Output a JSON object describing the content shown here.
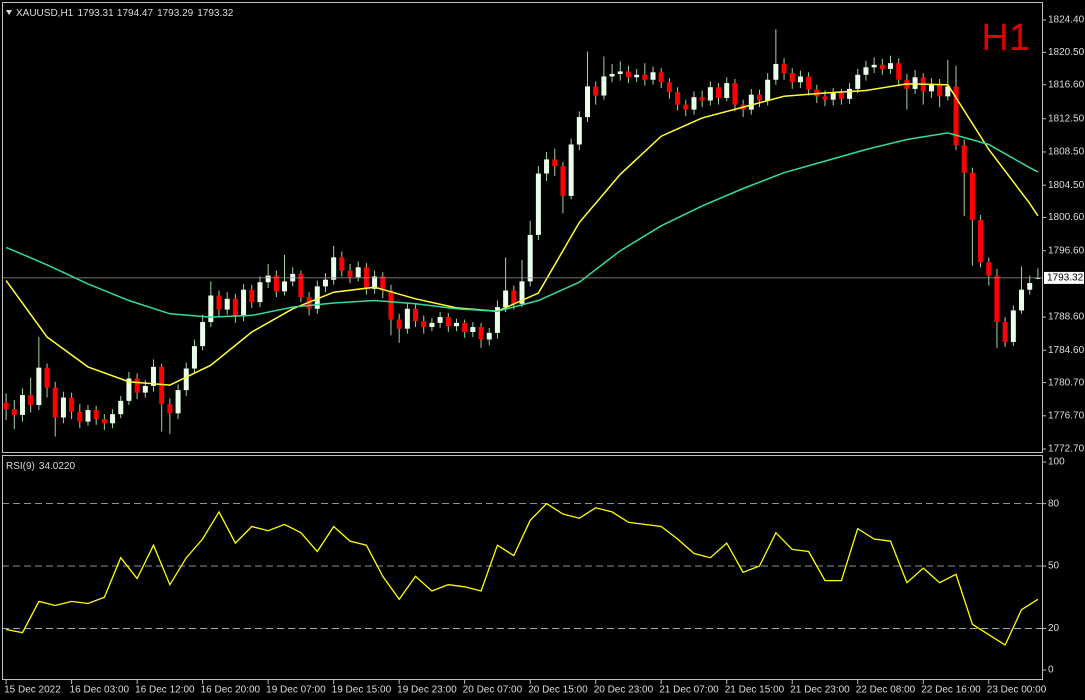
{
  "chart_data": {
    "type": "candlestick",
    "symbol": "XAUUSD,H1",
    "timeframe_label": "H1",
    "categories": [
      "15 Dec 2022",
      null,
      null,
      null,
      null,
      null,
      null,
      null,
      "16 Dec 03:00",
      null,
      null,
      null,
      null,
      null,
      null,
      null,
      "16 Dec 12:00",
      null,
      null,
      null,
      null,
      null,
      null,
      null,
      "16 Dec 20:00",
      null,
      null,
      null,
      null,
      null,
      null,
      null,
      "19 Dec 07:00",
      null,
      null,
      null,
      null,
      null,
      null,
      null,
      "19 Dec 15:00",
      null,
      null,
      null,
      null,
      null,
      null,
      null,
      "19 Dec 23:00",
      null,
      null,
      null,
      null,
      null,
      null,
      null,
      "20 Dec 07:00",
      null,
      null,
      null,
      null,
      null,
      null,
      null,
      "20 Dec 15:00",
      null,
      null,
      null,
      null,
      null,
      null,
      null,
      "20 Dec 23:00",
      null,
      null,
      null,
      null,
      null,
      null,
      null,
      "21 Dec 07:00",
      null,
      null,
      null,
      null,
      null,
      null,
      null,
      "21 Dec 15:00",
      null,
      null,
      null,
      null,
      null,
      null,
      null,
      "21 Dec 23:00",
      null,
      null,
      null,
      null,
      null,
      null,
      null,
      "22 Dec 08:00",
      null,
      null,
      null,
      null,
      null,
      null,
      null,
      "22 Dec 16:00",
      null,
      null,
      null,
      null,
      null,
      null,
      null,
      "23 Dec 00:00",
      null,
      null,
      null,
      null,
      null,
      null
    ],
    "open": [
      1778.3,
      1777.5,
      1776.8,
      1779.2,
      1778.0,
      1782.5,
      1780.1,
      1776.5,
      1778.9,
      1777.2,
      1776.0,
      1777.4,
      1776.3,
      1775.8,
      1776.9,
      1778.5,
      1781.2,
      1779.5,
      1780.3,
      1782.6,
      1778.1,
      1777.0,
      1779.8,
      1782.4,
      1785.1,
      1788.0,
      1791.2,
      1789.5,
      1790.8,
      1788.7,
      1791.9,
      1790.4,
      1792.8,
      1793.6,
      1791.7,
      1792.9,
      1793.8,
      1791.0,
      1789.6,
      1792.3,
      1793.1,
      1795.8,
      1794.2,
      1793.4,
      1794.6,
      1792.0,
      1793.5,
      1791.8,
      1788.3,
      1787.2,
      1789.6,
      1788.1,
      1787.4,
      1787.9,
      1788.6,
      1787.5,
      1787.9,
      1786.8,
      1787.4,
      1785.9,
      1786.7,
      1789.8,
      1791.8,
      1790.2,
      1792.9,
      1798.5,
      1805.9,
      1807.6,
      1806.8,
      1803.2,
      1809.4,
      1812.7,
      1816.4,
      1815.3,
      1817.6,
      1817.9,
      1818.2,
      1817.5,
      1817.8,
      1817.2,
      1818.1,
      1816.9,
      1815.7,
      1814.2,
      1813.6,
      1815.1,
      1814.7,
      1816.3,
      1815.0,
      1816.8,
      1814.2,
      1813.6,
      1815.4,
      1814.7,
      1817.2,
      1819.1,
      1818.0,
      1816.9,
      1817.6,
      1816.0,
      1815.2,
      1814.8,
      1815.6,
      1814.9,
      1816.1,
      1817.8,
      1818.7,
      1819.0,
      1818.5,
      1819.2,
      1817.2,
      1816.1,
      1817.5,
      1815.8,
      1816.7,
      1815.2,
      1816.4,
      1809.3,
      1806.0,
      1800.3,
      1795.2,
      1793.6,
      1788.0,
      1785.6,
      1789.4,
      1791.9,
      1793.31
    ],
    "high": [
      1779.4,
      1778.6,
      1780.0,
      1781.3,
      1786.2,
      1783.0,
      1780.8,
      1779.6,
      1779.5,
      1778.1,
      1778.0,
      1777.9,
      1776.9,
      1777.5,
      1779.1,
      1782.0,
      1781.8,
      1781.0,
      1783.5,
      1783.0,
      1778.8,
      1780.5,
      1783.1,
      1785.9,
      1788.9,
      1792.9,
      1791.8,
      1791.6,
      1791.4,
      1792.6,
      1792.5,
      1793.5,
      1795.0,
      1794.2,
      1796.1,
      1794.6,
      1794.2,
      1791.6,
      1793.0,
      1793.9,
      1797.2,
      1796.5,
      1795.0,
      1795.3,
      1795.1,
      1794.2,
      1794.0,
      1792.5,
      1789.0,
      1790.3,
      1790.2,
      1788.8,
      1788.5,
      1789.2,
      1789.1,
      1788.4,
      1788.3,
      1788.0,
      1787.9,
      1787.3,
      1790.6,
      1795.8,
      1792.4,
      1795.5,
      1800.2,
      1806.8,
      1808.5,
      1808.9,
      1807.3,
      1810.1,
      1813.4,
      1820.6,
      1817.0,
      1820.0,
      1819.1,
      1819.4,
      1818.9,
      1818.5,
      1819.2,
      1818.8,
      1818.6,
      1817.4,
      1816.3,
      1814.8,
      1815.8,
      1815.9,
      1817.0,
      1816.8,
      1817.5,
      1817.3,
      1814.8,
      1816.1,
      1816.0,
      1818.0,
      1823.3,
      1819.8,
      1818.6,
      1818.3,
      1818.1,
      1816.6,
      1815.9,
      1816.2,
      1816.1,
      1816.8,
      1818.5,
      1819.5,
      1819.9,
      1819.7,
      1820.1,
      1819.8,
      1817.9,
      1818.4,
      1818.0,
      1817.4,
      1817.3,
      1819.6,
      1818.9,
      1810.0,
      1806.6,
      1800.9,
      1795.8,
      1794.4,
      1788.6,
      1790.0,
      1794.7,
      1793.6,
      1794.47
    ],
    "low": [
      1776.2,
      1775.1,
      1776.0,
      1777.1,
      1777.4,
      1778.9,
      1774.2,
      1775.8,
      1776.3,
      1775.2,
      1775.5,
      1775.6,
      1775.0,
      1775.2,
      1776.4,
      1778.0,
      1778.7,
      1778.9,
      1779.6,
      1774.8,
      1774.5,
      1776.3,
      1779.1,
      1781.8,
      1784.6,
      1787.4,
      1788.6,
      1788.9,
      1787.9,
      1788.1,
      1789.7,
      1789.8,
      1792.1,
      1791.0,
      1791.2,
      1792.3,
      1790.4,
      1788.8,
      1789.0,
      1791.6,
      1792.5,
      1793.5,
      1792.7,
      1792.9,
      1791.3,
      1791.4,
      1790.9,
      1786.4,
      1785.5,
      1786.6,
      1787.4,
      1786.6,
      1786.9,
      1787.3,
      1786.8,
      1786.9,
      1786.1,
      1786.2,
      1784.9,
      1785.2,
      1786.0,
      1789.2,
      1789.5,
      1789.8,
      1792.3,
      1797.9,
      1805.0,
      1805.6,
      1801.1,
      1802.8,
      1808.7,
      1812.1,
      1814.2,
      1814.8,
      1816.9,
      1817.1,
      1816.8,
      1816.9,
      1816.5,
      1816.6,
      1816.2,
      1814.9,
      1813.5,
      1812.8,
      1813.0,
      1813.9,
      1814.1,
      1814.2,
      1814.6,
      1813.4,
      1812.7,
      1813.0,
      1813.9,
      1814.1,
      1816.6,
      1817.2,
      1816.1,
      1816.2,
      1815.3,
      1814.4,
      1814.0,
      1814.1,
      1814.2,
      1814.3,
      1815.6,
      1817.1,
      1818.0,
      1817.8,
      1817.9,
      1816.4,
      1813.6,
      1815.5,
      1814.2,
      1815.0,
      1813.9,
      1814.7,
      1808.7,
      1800.8,
      1794.8,
      1794.6,
      1792.4,
      1784.9,
      1785.0,
      1785.1,
      1789.0,
      1791.3,
      1793.29
    ],
    "close": [
      1777.5,
      1776.8,
      1779.2,
      1778.0,
      1782.5,
      1780.1,
      1776.5,
      1778.9,
      1777.2,
      1776.0,
      1777.4,
      1776.3,
      1775.8,
      1776.9,
      1778.5,
      1781.2,
      1779.5,
      1780.3,
      1782.6,
      1778.1,
      1777.0,
      1779.8,
      1782.4,
      1785.1,
      1788.0,
      1791.2,
      1789.5,
      1790.8,
      1788.7,
      1791.9,
      1790.4,
      1792.8,
      1793.6,
      1791.7,
      1792.9,
      1793.8,
      1791.0,
      1789.6,
      1792.3,
      1793.1,
      1795.8,
      1794.2,
      1793.4,
      1794.6,
      1792.0,
      1793.5,
      1791.8,
      1788.3,
      1787.2,
      1789.6,
      1788.1,
      1787.4,
      1787.9,
      1788.6,
      1787.5,
      1787.9,
      1786.8,
      1787.4,
      1785.9,
      1786.7,
      1789.8,
      1791.8,
      1790.2,
      1792.9,
      1798.5,
      1805.9,
      1807.6,
      1806.8,
      1803.2,
      1809.4,
      1812.7,
      1816.4,
      1815.3,
      1817.6,
      1817.9,
      1818.2,
      1817.5,
      1817.8,
      1817.2,
      1818.1,
      1816.9,
      1815.7,
      1814.2,
      1813.6,
      1815.1,
      1814.7,
      1816.3,
      1815.0,
      1816.8,
      1814.2,
      1813.6,
      1815.4,
      1814.7,
      1817.2,
      1819.1,
      1818.0,
      1816.9,
      1817.6,
      1816.0,
      1815.2,
      1814.8,
      1815.6,
      1814.9,
      1816.1,
      1817.8,
      1818.7,
      1819.0,
      1818.5,
      1819.2,
      1817.2,
      1816.1,
      1817.5,
      1815.8,
      1816.7,
      1815.2,
      1816.4,
      1809.3,
      1806.0,
      1800.3,
      1795.2,
      1793.6,
      1788.0,
      1785.6,
      1789.4,
      1791.9,
      1792.7,
      1793.32
    ],
    "bull_color": "#eaffea",
    "bear_color": "#ff0000",
    "wick_color": "#9fd49f",
    "ylim": [
      1772.34,
      1826.57
    ],
    "yticks": [
      {
        "value": 1824.4,
        "label": "1824.40"
      },
      {
        "value": 1820.5,
        "label": "1820.50"
      },
      {
        "value": 1816.6,
        "label": "1816.60"
      },
      {
        "value": 1812.5,
        "label": "1812.50"
      },
      {
        "value": 1808.5,
        "label": "1808.50"
      },
      {
        "value": 1804.5,
        "label": "1804.50"
      },
      {
        "value": 1800.6,
        "label": "1800.60"
      },
      {
        "value": 1796.6,
        "label": "1796.60"
      },
      {
        "value": 1788.6,
        "label": "1788.60"
      },
      {
        "value": 1784.6,
        "label": "1784.60"
      },
      {
        "value": 1780.7,
        "label": "1780.70"
      },
      {
        "value": 1776.7,
        "label": "1776.70"
      },
      {
        "value": 1772.7,
        "label": "1772.70"
      }
    ],
    "moving_averages": [
      {
        "color": "#ffff33",
        "x": [
          0,
          5,
          10,
          15,
          20,
          25,
          30,
          35,
          40,
          45,
          50,
          55,
          60,
          65,
          70,
          75,
          80,
          85,
          90,
          95,
          100,
          105,
          110,
          115,
          120,
          125,
          126
        ],
        "values": [
          1793.0,
          1786.2,
          1782.6,
          1780.8,
          1780.4,
          1782.8,
          1786.8,
          1789.6,
          1791.6,
          1792.2,
          1790.8,
          1789.7,
          1789.3,
          1791.5,
          1800.0,
          1805.8,
          1810.4,
          1812.6,
          1813.9,
          1815.2,
          1815.6,
          1815.9,
          1816.7,
          1816.6,
          1808.8,
          1802.3,
          1800.8
        ]
      },
      {
        "color": "#33dd99",
        "x": [
          0,
          5,
          10,
          15,
          20,
          25,
          30,
          35,
          40,
          45,
          50,
          55,
          60,
          65,
          70,
          75,
          80,
          85,
          90,
          95,
          100,
          105,
          110,
          115,
          120,
          125,
          126
        ],
        "values": [
          1797.0,
          1794.9,
          1792.6,
          1790.6,
          1789.0,
          1788.6,
          1788.8,
          1789.8,
          1790.3,
          1790.6,
          1790.2,
          1789.6,
          1789.3,
          1790.6,
          1792.8,
          1796.6,
          1799.6,
          1802.0,
          1804.1,
          1806.0,
          1807.4,
          1808.8,
          1810.0,
          1810.8,
          1809.4,
          1806.6,
          1806.1
        ]
      }
    ],
    "rsi": {
      "label": "RSI(9)",
      "value_label": "34.0220",
      "color": "#ffff00",
      "x": [
        0,
        2,
        4,
        6,
        8,
        10,
        12,
        14,
        16,
        18,
        20,
        22,
        24,
        26,
        28,
        30,
        32,
        34,
        36,
        38,
        40,
        42,
        44,
        46,
        48,
        50,
        52,
        54,
        56,
        58,
        60,
        62,
        64,
        66,
        68,
        70,
        72,
        74,
        76,
        78,
        80,
        82,
        84,
        86,
        88,
        90,
        92,
        94,
        96,
        98,
        100,
        102,
        104,
        106,
        108,
        110,
        112,
        114,
        116,
        118,
        120,
        122,
        124,
        126
      ],
      "values": [
        19.5,
        18,
        33,
        31,
        33,
        32,
        35,
        54,
        44,
        60,
        41,
        54,
        63,
        76,
        61,
        69,
        67,
        70,
        66,
        57,
        69,
        62,
        60,
        45,
        34,
        45,
        38,
        41,
        40,
        38,
        60,
        55,
        72,
        80,
        75,
        73,
        78,
        76,
        71,
        70,
        69,
        63,
        56,
        54,
        61,
        47,
        50,
        66,
        58,
        57,
        43,
        43,
        68,
        63,
        62,
        42,
        49,
        42,
        46,
        22,
        17,
        12,
        29,
        34.022
      ],
      "ylim": [
        -4.8,
        102.9
      ],
      "yticks": [
        0,
        20,
        50,
        80,
        100
      ],
      "levels": [
        20,
        50,
        80
      ]
    }
  }
}
